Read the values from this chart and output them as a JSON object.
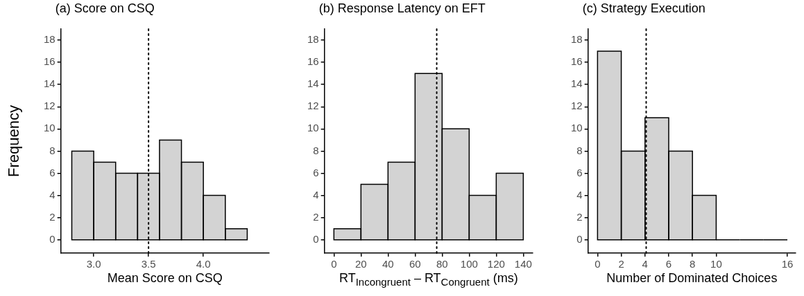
{
  "chart_data": [
    {
      "type": "histogram",
      "title": "(a) Score on CSQ",
      "xlabel": "Mean Score on CSQ",
      "ylabel": "Frequency",
      "bins": [
        2.8,
        3.0,
        3.2,
        3.4,
        3.6,
        3.8,
        4.0,
        4.2,
        4.4
      ],
      "values": [
        8,
        7,
        6,
        6,
        9,
        7,
        4,
        1
      ],
      "color": "#d3d3d3",
      "xlim": [
        2.7,
        4.6
      ],
      "xticks": [
        {
          "value": 3,
          "label": "3.0"
        },
        3.5,
        {
          "value": 4,
          "label": "4.0"
        }
      ],
      "ylim": [
        -1.2,
        19
      ],
      "yticks": [
        0,
        2,
        4,
        6,
        8,
        10,
        12,
        14,
        16,
        18
      ],
      "grid": false,
      "ref_lines": [
        {
          "axis": "x",
          "value": 3.5,
          "color": "#000000",
          "line_style": "dotted"
        }
      ]
    },
    {
      "type": "histogram",
      "title": "(b) Response Latency on EFT",
      "xlabel": "RT$_{Incongruent}$ – RT$_{Congruent}$ (ms)",
      "bins": [
        0,
        20,
        40,
        60,
        80,
        100,
        120,
        140
      ],
      "values": [
        1,
        5,
        7,
        15,
        10,
        4,
        6
      ],
      "color": "#d3d3d3",
      "xlim": [
        -7,
        147
      ],
      "xticks": [
        0,
        20,
        40,
        60,
        80,
        100,
        120,
        140
      ],
      "ylim": [
        -1.2,
        19
      ],
      "yticks": [
        0,
        2,
        4,
        6,
        8,
        10,
        12,
        14,
        16,
        18
      ],
      "grid": false,
      "ref_lines": [
        {
          "axis": "x",
          "value": 76,
          "color": "#000000",
          "line_style": "dotted"
        }
      ]
    },
    {
      "type": "histogram",
      "title": "(c) Strategy Execution",
      "xlabel": "Number of Dominated Choices",
      "bins": [
        0,
        2,
        4,
        6,
        8,
        10,
        12,
        14,
        16
      ],
      "values": [
        17,
        8,
        11,
        8,
        4,
        0,
        0,
        0
      ],
      "color": "#d3d3d3",
      "xlim": [
        -0.8,
        16.7
      ],
      "xticks": [
        0,
        2,
        4,
        6,
        8,
        10,
        16
      ],
      "ylim": [
        -1.2,
        19
      ],
      "yticks": [
        0,
        2,
        4,
        6,
        8,
        10,
        12,
        14,
        16,
        18
      ],
      "grid": false,
      "ref_lines": [
        {
          "axis": "x",
          "value": 4.1,
          "color": "#000000",
          "line_style": "dotted"
        }
      ]
    }
  ]
}
